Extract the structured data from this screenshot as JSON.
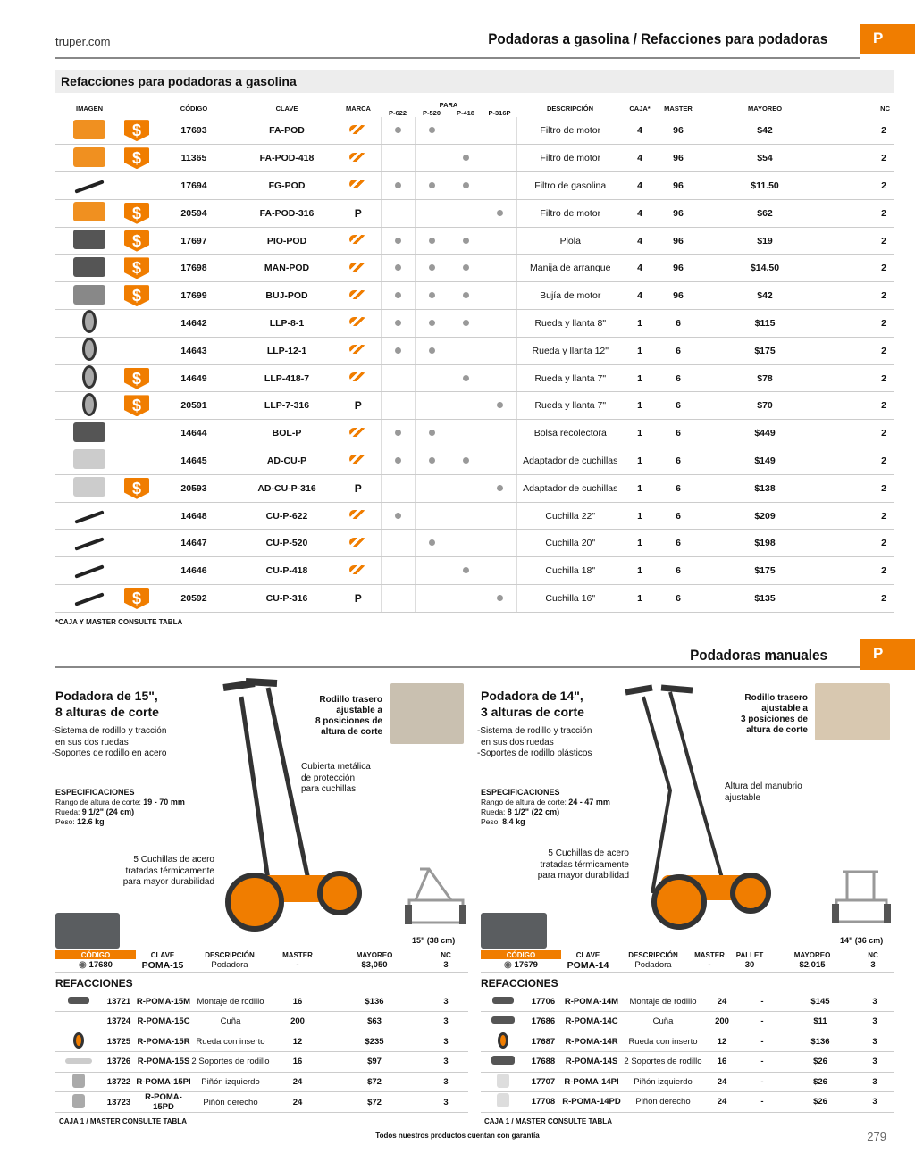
{
  "header": {
    "site": "truper.com",
    "title1": "Podadoras a gasolina / Refacciones para podadoras",
    "tab": "P",
    "title2": "Podadoras manuales",
    "tab2": "P"
  },
  "gas": {
    "section": "Refacciones para podadoras a gasolina",
    "headers": {
      "imagen": "IMAGEN",
      "codigo": "CÓDIGO",
      "clave": "CLAVE",
      "marca": "MARCA",
      "para": "PARA",
      "p622": "P-622",
      "p520": "P-520",
      "p418": "P-418",
      "p316": "P-316P",
      "descripcion": "DESCRIPCIÓN",
      "caja": "CAJA*",
      "master": "MASTER",
      "mayoreo": "MAYOREO",
      "nc": "NC"
    },
    "note": "*CAJA Y MASTER CONSULTE TABLA"
  },
  "manual": {
    "left": {
      "title": "Podadora de 15\", 8 alturas de corte",
      "title_a": "Podadora de 15\",",
      "title_b": "8 alturas de corte",
      "b1": "-Sistema de rodillo y tracción",
      "b1b": "en sus dos ruedas",
      "b2": "-Soportes de rodillo en acero",
      "spec_h": "ESPECIFICACIONES",
      "spec1_l": "Rango de altura de corte: ",
      "spec1_v": "19 - 70 mm",
      "spec2_l": "Rueda: ",
      "spec2_v": "9 1/2\" (24 cm)",
      "spec3_l": "Peso: ",
      "spec3_v": "12.6 kg",
      "cap_roller_a": "Rodillo trasero",
      "cap_roller_b": "ajustable a",
      "cap_roller_c": "8 posiciones de",
      "cap_roller_d": "altura de corte",
      "cap_cover_a": "Cubierta metálica",
      "cap_cover_b": "de protección",
      "cap_cover_c": "para cuchillas",
      "cap_blades_a": "5 Cuchillas de acero",
      "cap_blades_b": "tratadas térmicamente",
      "cap_blades_c": "para mayor durabilidad",
      "size": "15\" (38 cm)",
      "h": {
        "codigo": "CÓDIGO",
        "clave": "CLAVE",
        "desc": "DESCRIPCIÓN",
        "master": "MASTER",
        "mayoreo": "MAYOREO",
        "nc": "NC"
      },
      "main": {
        "codigo": "17680",
        "clave": "POMA-15",
        "desc": "Podadora",
        "master": "-",
        "mayoreo": "$3,050",
        "nc": "3"
      },
      "ref": "REFACCIONES",
      "note": "CAJA 1 / MASTER CONSULTE TABLA"
    },
    "right": {
      "title_a": "Podadora de 14\",",
      "title_b": "3 alturas de corte",
      "b1": "-Sistema de rodillo y tracción",
      "b1b": "en sus dos ruedas",
      "b2": "-Soportes de rodillo plásticos",
      "spec_h": "ESPECIFICACIONES",
      "spec1_l": "Rango de altura de corte: ",
      "spec1_v": "24 - 47  mm",
      "spec2_l": "Rueda: ",
      "spec2_v": "8 1/2\" (22 cm)",
      "spec3_l": "Peso: ",
      "spec3_v": "8.4 kg",
      "cap_roller_a": "Rodillo trasero",
      "cap_roller_b": "ajustable a",
      "cap_roller_c": "3 posiciones de",
      "cap_roller_d": "altura de corte",
      "cap_handle_a": "Altura del manubrio",
      "cap_handle_b": "ajustable",
      "cap_blades_a": "5 Cuchillas de acero",
      "cap_blades_b": "tratadas térmicamente",
      "cap_blades_c": "para mayor durabilidad",
      "size": "14\" (36 cm)",
      "h": {
        "codigo": "CÓDIGO",
        "clave": "CLAVE",
        "desc": "DESCRIPCIÓN",
        "master": "MASTER",
        "pallet": "PALLET",
        "mayoreo": "MAYOREO",
        "nc": "NC"
      },
      "main": {
        "codigo": "17679",
        "clave": "POMA-14",
        "desc": "Podadora",
        "master": "-",
        "pallet": "30",
        "mayoreo": "$2,015",
        "nc": "3"
      },
      "ref": "REFACCIONES",
      "note": "CAJA 1 / MASTER CONSULTE TABLA"
    }
  },
  "footer": {
    "text": "Todos nuestros productos cuentan con garantía",
    "page": "279"
  }
}
